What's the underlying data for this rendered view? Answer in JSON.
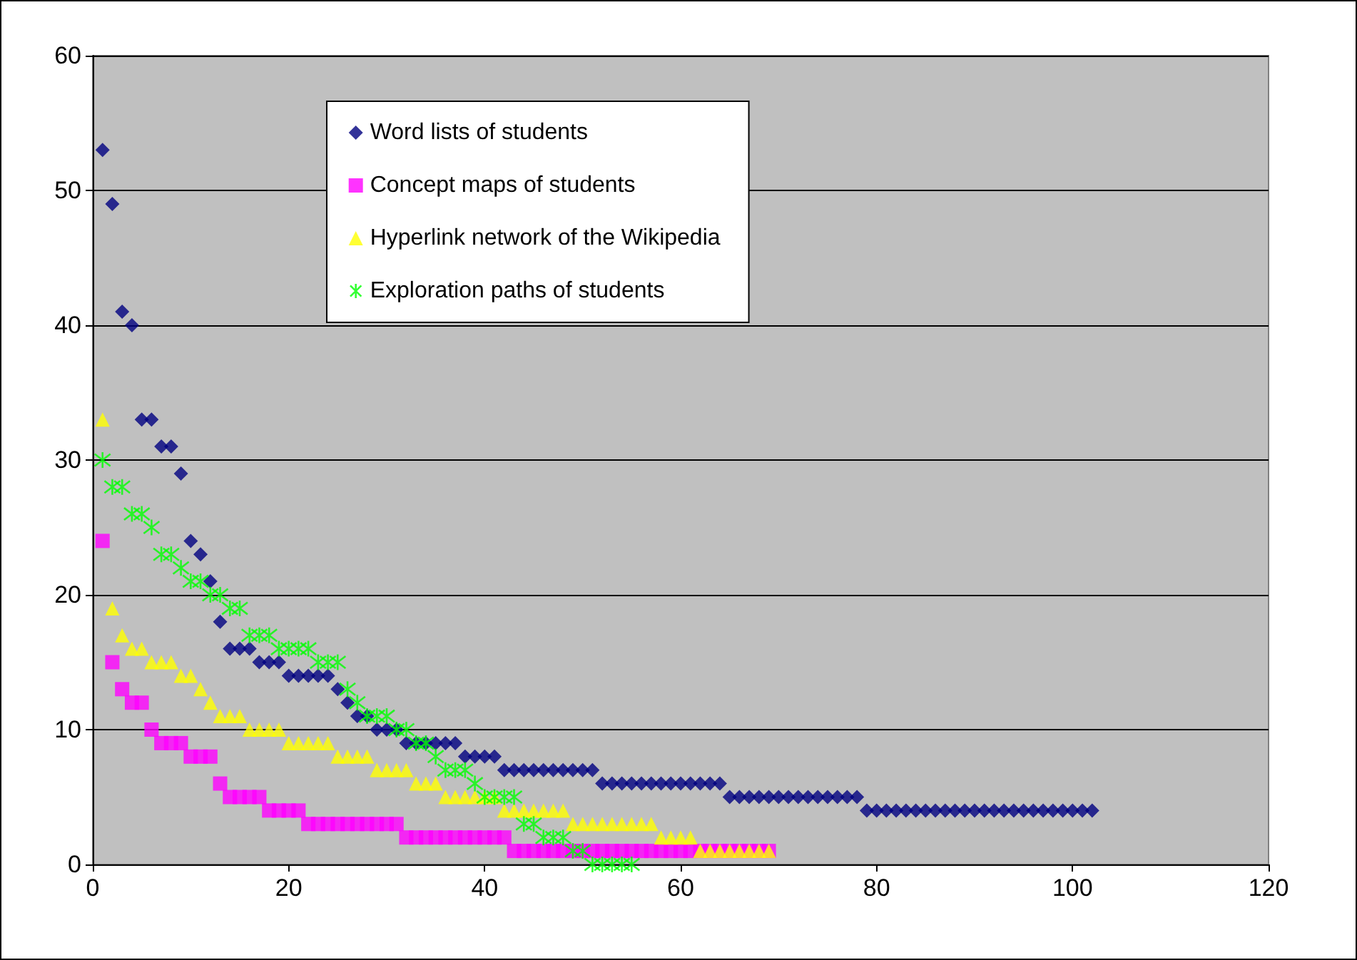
{
  "chart_data": {
    "type": "scatter",
    "xlim": [
      0,
      120
    ],
    "xticks": [
      0,
      20,
      40,
      60,
      80,
      100,
      120
    ],
    "ylim": [
      0,
      60
    ],
    "yticks": [
      0,
      10,
      20,
      30,
      40,
      50,
      60
    ],
    "grid": "y",
    "legend": "top",
    "series": [
      {
        "name": "Word lists of students",
        "color": "#000080",
        "marker": "diamond",
        "x": [
          1,
          2,
          3,
          4,
          5,
          6,
          7,
          8,
          9,
          10,
          11,
          12,
          13,
          14,
          15,
          16,
          17,
          18,
          19,
          20,
          21,
          22,
          23,
          24,
          25,
          26,
          27,
          28,
          29,
          30,
          31,
          32,
          33,
          34,
          35,
          36,
          37,
          38,
          39,
          40,
          41,
          42,
          43,
          44,
          45,
          46,
          47,
          48,
          49,
          50,
          51,
          52,
          53,
          54,
          55,
          56,
          57,
          58,
          59,
          60,
          61,
          62,
          63,
          64,
          65,
          66,
          67,
          68,
          69,
          70,
          71,
          72,
          73,
          74,
          75,
          76,
          77,
          78,
          79,
          80,
          81,
          82,
          83,
          84,
          85,
          86,
          87,
          88,
          89,
          90,
          91,
          92,
          93,
          94,
          95,
          96,
          97,
          98,
          99,
          100,
          101,
          102
        ],
        "values": [
          53,
          49,
          41,
          40,
          33,
          33,
          31,
          31,
          29,
          24,
          23,
          21,
          18,
          16,
          16,
          16,
          15,
          15,
          15,
          14,
          14,
          14,
          14,
          14,
          13,
          12,
          11,
          11,
          10,
          10,
          10,
          9,
          9,
          9,
          9,
          9,
          9,
          8,
          8,
          8,
          8,
          7,
          7,
          7,
          7,
          7,
          7,
          7,
          7,
          7,
          7,
          6,
          6,
          6,
          6,
          6,
          6,
          6,
          6,
          6,
          6,
          6,
          6,
          6,
          5,
          5,
          5,
          5,
          5,
          5,
          5,
          5,
          5,
          5,
          5,
          5,
          5,
          5,
          4,
          4,
          4,
          4,
          4,
          4,
          4,
          4,
          4,
          4,
          4,
          4,
          4,
          4,
          4,
          4,
          4,
          4,
          4,
          4,
          4,
          4,
          4,
          4
        ]
      },
      {
        "name": "Concept maps of students",
        "color": "#ff00ff",
        "marker": "square",
        "x": [
          1,
          2,
          3,
          4,
          5,
          6,
          7,
          8,
          9,
          10,
          11,
          12,
          13,
          14,
          15,
          16,
          17,
          18,
          19,
          20,
          21,
          22,
          23,
          24,
          25,
          26,
          27,
          28,
          29,
          30,
          31,
          32,
          33,
          34,
          35,
          36,
          37,
          38,
          39,
          40,
          41,
          42,
          43,
          44,
          45,
          46,
          47,
          48,
          49,
          50,
          51,
          52,
          53,
          54,
          55,
          56,
          57,
          58,
          59,
          60,
          61,
          62,
          63,
          64,
          65,
          66,
          67,
          68,
          69
        ],
        "values": [
          24,
          15,
          13,
          12,
          12,
          10,
          9,
          9,
          9,
          8,
          8,
          8,
          6,
          5,
          5,
          5,
          5,
          4,
          4,
          4,
          4,
          3,
          3,
          3,
          3,
          3,
          3,
          3,
          3,
          3,
          3,
          2,
          2,
          2,
          2,
          2,
          2,
          2,
          2,
          2,
          2,
          2,
          1,
          1,
          1,
          1,
          1,
          1,
          1,
          1,
          1,
          1,
          1,
          1,
          1,
          1,
          1,
          1,
          1,
          1,
          1,
          1,
          1,
          1,
          1,
          1,
          1,
          1,
          1
        ]
      },
      {
        "name": "Hyperlink network of the Wikipedia",
        "color": "#ffff00",
        "marker": "triangle",
        "x": [
          1,
          2,
          3,
          4,
          5,
          6,
          7,
          8,
          9,
          10,
          11,
          12,
          13,
          14,
          15,
          16,
          17,
          18,
          19,
          20,
          21,
          22,
          23,
          24,
          25,
          26,
          27,
          28,
          29,
          30,
          31,
          32,
          33,
          34,
          35,
          36,
          37,
          38,
          39,
          40,
          41,
          42,
          43,
          44,
          45,
          46,
          47,
          48,
          49,
          50,
          51,
          52,
          53,
          54,
          55,
          56,
          57,
          58,
          59,
          60,
          61,
          62,
          63,
          64,
          65,
          66,
          67,
          68,
          69
        ],
        "values": [
          33,
          19,
          17,
          16,
          16,
          15,
          15,
          15,
          14,
          14,
          13,
          12,
          11,
          11,
          11,
          10,
          10,
          10,
          10,
          9,
          9,
          9,
          9,
          9,
          8,
          8,
          8,
          8,
          7,
          7,
          7,
          7,
          6,
          6,
          6,
          5,
          5,
          5,
          5,
          5,
          5,
          4,
          4,
          4,
          4,
          4,
          4,
          4,
          3,
          3,
          3,
          3,
          3,
          3,
          3,
          3,
          3,
          2,
          2,
          2,
          2,
          1,
          1,
          1,
          1,
          1,
          1,
          1,
          1
        ]
      },
      {
        "name": "Exploration paths of students",
        "color": "#00ff00",
        "marker": "cross",
        "x": [
          1,
          2,
          3,
          4,
          5,
          6,
          7,
          8,
          9,
          10,
          11,
          12,
          13,
          14,
          15,
          16,
          17,
          18,
          19,
          20,
          21,
          22,
          23,
          24,
          25,
          26,
          27,
          28,
          29,
          30,
          31,
          32,
          33,
          34,
          35,
          36,
          37,
          38,
          39,
          40,
          41,
          42,
          43,
          44,
          45,
          46,
          47,
          48,
          49,
          50,
          51,
          52,
          53,
          54,
          55
        ],
        "values": [
          30,
          28,
          28,
          26,
          26,
          25,
          23,
          23,
          22,
          21,
          21,
          20,
          20,
          19,
          19,
          17,
          17,
          17,
          16,
          16,
          16,
          16,
          15,
          15,
          15,
          13,
          12,
          11,
          11,
          11,
          10,
          10,
          9,
          9,
          8,
          7,
          7,
          7,
          6,
          5,
          5,
          5,
          5,
          3,
          3,
          2,
          2,
          2,
          1,
          1,
          0,
          0,
          0,
          0,
          0
        ]
      }
    ]
  }
}
